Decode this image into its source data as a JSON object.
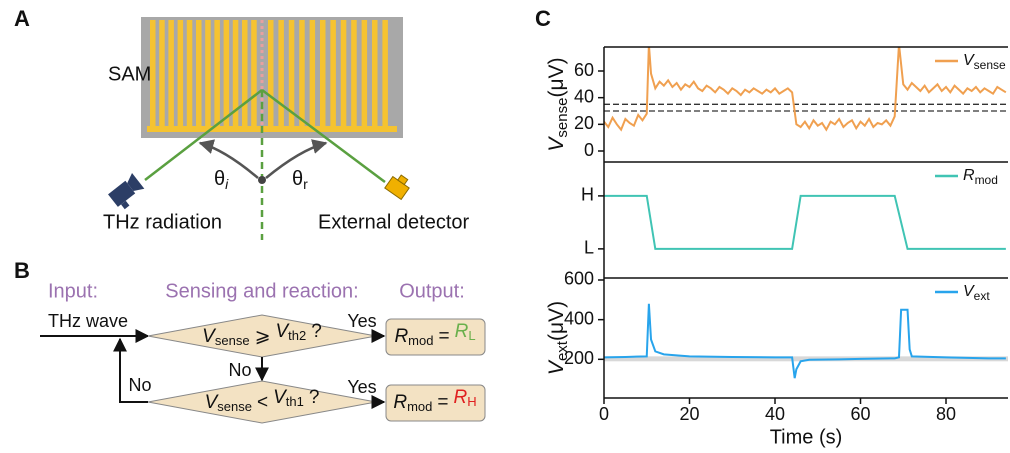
{
  "panels": {
    "a": "A",
    "b": "B",
    "c": "C"
  },
  "diagram": {
    "sample": "SAM",
    "incident_angle": [
      "θ",
      "i"
    ],
    "reflect_angle": [
      "θ",
      "r"
    ],
    "source": "THz radiation",
    "detector": "External detector"
  },
  "flowchart": {
    "headers": [
      "Input:",
      "Sensing and reaction:",
      "Output:"
    ],
    "input": "THz wave",
    "conditions": [
      [
        "V",
        "sense",
        "⩾",
        "V",
        "th2",
        "?"
      ],
      [
        "V",
        "sense",
        "<",
        "V",
        "th1",
        "?"
      ]
    ],
    "edges": [
      "Yes",
      "No",
      "Yes",
      "No"
    ],
    "outputs": [
      [
        "R",
        "mod",
        "=",
        "R",
        "L"
      ],
      [
        "R",
        "mod",
        "=",
        "R",
        "H"
      ]
    ]
  },
  "chart_data": [
    {
      "type": "line",
      "ylabel": [
        "V",
        "sense",
        "(μV)"
      ],
      "x": [
        0,
        1,
        2,
        3,
        4,
        5,
        6,
        7,
        8,
        9,
        10,
        10.5,
        11,
        12,
        13,
        14,
        15,
        16,
        17,
        18,
        19,
        20,
        21,
        22,
        23,
        24,
        25,
        26,
        27,
        28,
        29,
        30,
        31,
        32,
        33,
        34,
        35,
        36,
        37,
        38,
        39,
        40,
        41,
        42,
        43,
        44,
        45,
        46,
        47,
        48,
        49,
        50,
        51,
        52,
        53,
        54,
        55,
        56,
        57,
        58,
        59,
        60,
        61,
        62,
        63,
        64,
        65,
        66,
        67,
        68,
        69,
        70,
        71,
        72,
        73,
        74,
        75,
        76,
        77,
        78,
        79,
        80,
        81,
        82,
        83,
        84,
        85,
        86,
        87,
        88,
        89,
        90,
        91,
        92,
        93,
        94
      ],
      "series": [
        {
          "name": "V",
          "name_sub": "sense",
          "color": "#f0a050",
          "values": [
            22,
            18,
            25,
            20,
            16,
            24,
            21,
            19,
            27,
            23,
            28,
            80,
            58,
            47,
            52,
            49,
            53,
            48,
            51,
            46,
            50,
            48,
            52,
            47,
            45,
            49,
            47,
            44,
            48,
            46,
            43,
            47,
            45,
            42,
            46,
            44,
            47,
            45,
            43,
            46,
            44,
            47,
            43,
            45,
            47,
            44,
            20,
            18,
            22,
            17,
            23,
            19,
            21,
            16,
            22,
            20,
            24,
            18,
            21,
            23,
            17,
            22,
            19,
            24,
            18,
            21,
            20,
            23,
            19,
            26,
            80,
            50,
            46,
            51,
            48,
            45,
            49,
            44,
            47,
            50,
            45,
            48,
            44,
            49,
            46,
            43,
            47,
            45,
            48,
            44,
            47,
            45,
            43,
            48,
            46,
            44
          ]
        }
      ],
      "thresholds": [
        30,
        35
      ],
      "xlim": [
        0,
        94.5
      ],
      "ylim": [
        -8.25,
        78
      ],
      "yticks": [
        0,
        20,
        40,
        60
      ]
    },
    {
      "type": "line",
      "x": [
        0,
        10,
        12,
        44,
        46,
        68,
        71,
        94
      ],
      "series": [
        {
          "name": "R",
          "name_sub": "mod",
          "color": "#40c4b4",
          "values": [
            1,
            1,
            0,
            0,
            1,
            1,
            0,
            0
          ]
        }
      ],
      "xlim": [
        0,
        94.5
      ],
      "ylim": [
        -0.55,
        1.64
      ],
      "yticks": [
        {
          "value": 0,
          "label": "L"
        },
        {
          "value": 1,
          "label": "H"
        }
      ]
    },
    {
      "type": "line",
      "ylabel": [
        "V",
        "ext",
        "(μV)"
      ],
      "xlabel": "Time (s)",
      "x": [
        0,
        5,
        10,
        10.5,
        11,
        12,
        14,
        20,
        30,
        40,
        44,
        44.6,
        45,
        46,
        48,
        55,
        60,
        68,
        69,
        69.5,
        71,
        71.5,
        72,
        80,
        90,
        94
      ],
      "series": [
        {
          "name": "V",
          "name_sub": "ext",
          "color": "#28a4ec",
          "values": [
            210,
            212,
            215,
            480,
            300,
            240,
            225,
            215,
            212,
            210,
            210,
            105,
            150,
            190,
            198,
            200,
            202,
            205,
            210,
            450,
            450,
            250,
            215,
            210,
            205,
            205
          ]
        }
      ],
      "band": [
        190,
        215
      ],
      "xlim": [
        0,
        94.5
      ],
      "ylim": [
        5,
        610
      ],
      "yticks": [
        200,
        400,
        600
      ],
      "xticks": [
        0,
        20,
        40,
        60,
        80
      ]
    }
  ]
}
